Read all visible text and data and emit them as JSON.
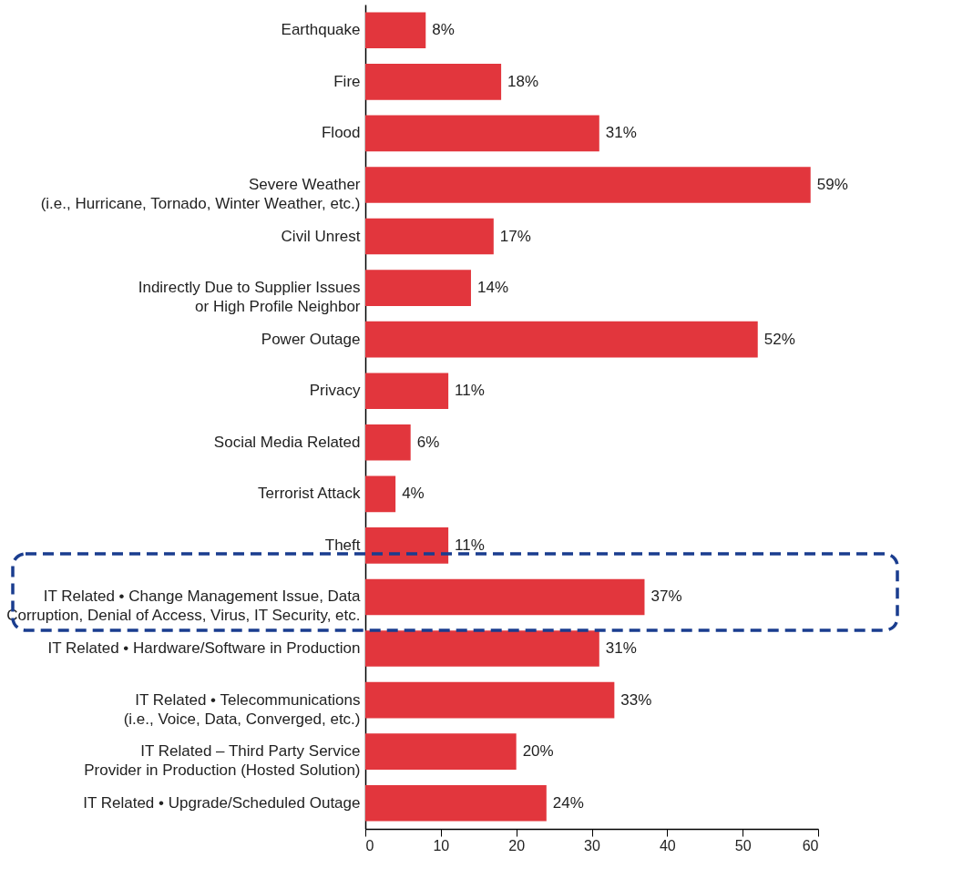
{
  "chart_data": {
    "type": "bar",
    "orientation": "horizontal",
    "categories": [
      "Earthquake",
      "Fire",
      "Flood",
      "Severe Weather\n(i.e., Hurricane, Tornado, Winter Weather, etc.)",
      "Civil Unrest",
      "Indirectly Due to Supplier Issues\nor High Profile Neighbor",
      "Power Outage",
      "Privacy",
      "Social Media Related",
      "Terrorist Attack",
      "Theft",
      "IT Related • Change Management Issue, Data\nCorruption, Denial of Access, Virus, IT Security, etc.",
      "IT Related • Hardware/Software in Production",
      "IT Related • Telecommunications\n(i.e., Voice, Data, Converged, etc.)",
      "IT Related – Third Party Service\nProvider in Production (Hosted Solution)",
      "IT Related • Upgrade/Scheduled Outage"
    ],
    "values": [
      8,
      18,
      31,
      59,
      17,
      14,
      52,
      11,
      6,
      4,
      11,
      37,
      31,
      33,
      20,
      24
    ],
    "value_labels": [
      "8%",
      "18%",
      "31%",
      "59%",
      "17%",
      "14%",
      "52%",
      "11%",
      "6%",
      "4%",
      "11%",
      "37%",
      "31%",
      "33%",
      "20%",
      "24%"
    ],
    "color": "#e2363d",
    "xlim": [
      0,
      60
    ],
    "xticks": [
      0,
      10,
      20,
      30,
      40,
      50,
      60
    ],
    "grid": false
  }
}
